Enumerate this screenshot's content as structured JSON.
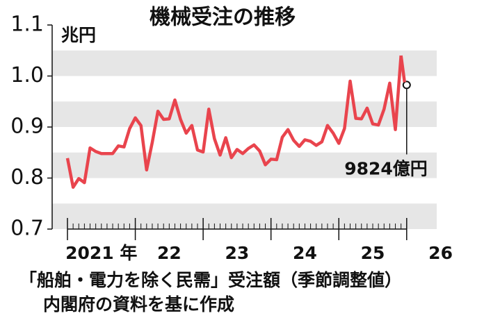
{
  "chart_data": {
    "type": "line",
    "title": "機械受注の推移",
    "y_unit": "兆円",
    "categories": [
      null,
      null,
      null,
      null,
      null,
      null,
      null,
      null,
      null,
      null,
      null,
      null,
      null,
      null,
      null,
      null,
      null,
      null,
      null,
      null,
      null,
      null,
      null,
      null,
      null,
      null,
      null,
      null,
      null,
      null,
      null,
      null,
      null,
      null,
      null,
      null,
      null,
      null,
      null,
      null,
      null,
      null,
      null,
      null,
      null,
      null,
      null,
      null,
      null,
      null,
      null,
      null,
      null,
      null,
      null,
      null,
      null,
      null,
      null,
      null,
      null
    ],
    "xticks": [
      {
        "value": 0,
        "label": "2021 年"
      },
      {
        "value": 12,
        "label": "22"
      },
      {
        "value": 24,
        "label": "23"
      },
      {
        "value": 36,
        "label": "24"
      },
      {
        "value": 48,
        "label": "25"
      },
      {
        "value": 60,
        "label": "26"
      }
    ],
    "series": [
      {
        "color": "#e9444d",
        "values": [
          0.839,
          0.782,
          0.799,
          0.791,
          0.859,
          0.852,
          0.848,
          0.848,
          0.848,
          0.863,
          0.861,
          0.897,
          0.918,
          0.903,
          0.816,
          0.87,
          0.931,
          0.915,
          0.916,
          0.953,
          0.915,
          0.888,
          0.903,
          0.855,
          0.851,
          0.935,
          0.877,
          0.845,
          0.879,
          0.84,
          0.856,
          0.848,
          0.858,
          0.865,
          0.853,
          0.826,
          0.837,
          0.836,
          0.88,
          0.895,
          0.874,
          0.862,
          0.875,
          0.872,
          0.864,
          0.871,
          0.903,
          0.888,
          0.868,
          0.897,
          0.99,
          0.917,
          0.916,
          0.937,
          0.906,
          0.904,
          0.935,
          0.986,
          0.895,
          1.04,
          0.9824
        ]
      }
    ],
    "ylim": [
      0.7,
      1.1
    ],
    "yticks": [
      0.7,
      0.8,
      0.9,
      1.0,
      1.1
    ],
    "yticks_labels": [
      "0.7",
      "0.8",
      "0.9",
      "1.0",
      "1.1"
    ],
    "annotation": {
      "index": 60,
      "text": "9824億円"
    },
    "notes": [
      "「船舶・電力を除く民需」受注額（季節調整値）",
      "内閣府の資料を基に作成"
    ]
  }
}
